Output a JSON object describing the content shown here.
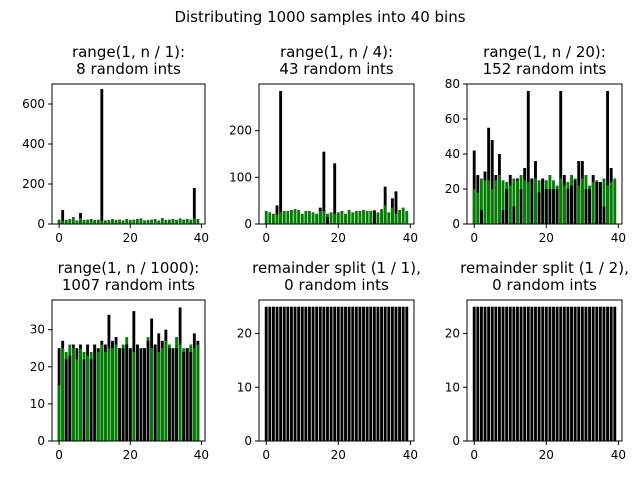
{
  "figure": {
    "suptitle": "Distributing 1000 samples into 40 bins"
  },
  "colors": {
    "green": "#008000",
    "black": "#000000"
  },
  "chart_data": [
    {
      "type": "bar",
      "title_line1": "range(1, n / 1):",
      "title_line2": "8 random ints",
      "xlim": [
        -2,
        41
      ],
      "ylim": [
        0,
        700
      ],
      "xticks": [
        0,
        20,
        40
      ],
      "yticks": [
        0,
        200,
        400,
        600
      ],
      "green": [
        22,
        15,
        20,
        25,
        35,
        18,
        30,
        20,
        22,
        25,
        20,
        22,
        15,
        18,
        20,
        25,
        20,
        22,
        18,
        25,
        20,
        22,
        25,
        28,
        18,
        20,
        22,
        25,
        18,
        30,
        20,
        22,
        25,
        20,
        28,
        22,
        25,
        22,
        28,
        25
      ],
      "black": [
        0,
        70,
        0,
        0,
        0,
        0,
        55,
        0,
        0,
        0,
        0,
        0,
        675,
        0,
        0,
        0,
        0,
        0,
        0,
        0,
        0,
        0,
        0,
        0,
        0,
        0,
        0,
        0,
        0,
        0,
        0,
        0,
        0,
        0,
        0,
        0,
        0,
        0,
        180,
        0
      ]
    },
    {
      "type": "bar",
      "title_line1": "range(1, n / 4):",
      "title_line2": "43 random ints",
      "xlim": [
        -2,
        41
      ],
      "ylim": [
        0,
        300
      ],
      "xticks": [
        0,
        20,
        40
      ],
      "yticks": [
        0,
        100,
        200
      ],
      "green": [
        28,
        25,
        22,
        20,
        25,
        28,
        28,
        30,
        32,
        30,
        22,
        28,
        28,
        25,
        22,
        28,
        28,
        22,
        25,
        22,
        25,
        28,
        22,
        30,
        25,
        28,
        28,
        30,
        28,
        28,
        30,
        25,
        32,
        40,
        25,
        35,
        22,
        30,
        35,
        28
      ],
      "black": [
        0,
        0,
        0,
        40,
        285,
        0,
        0,
        0,
        0,
        0,
        0,
        0,
        0,
        0,
        0,
        35,
        155,
        15,
        0,
        130,
        0,
        0,
        0,
        0,
        0,
        0,
        0,
        0,
        0,
        0,
        28,
        0,
        0,
        80,
        0,
        55,
        70,
        0,
        0,
        0
      ]
    },
    {
      "type": "bar",
      "title_line1": "range(1, n / 20):",
      "title_line2": "152 random ints",
      "xlim": [
        -2,
        41
      ],
      "ylim": [
        0,
        80
      ],
      "xticks": [
        0,
        20,
        40
      ],
      "yticks": [
        0,
        20,
        40,
        60,
        80
      ],
      "green": [
        20,
        18,
        26,
        25,
        25,
        20,
        25,
        28,
        25,
        24,
        22,
        26,
        25,
        28,
        25,
        24,
        26,
        26,
        25,
        26,
        25,
        28,
        25,
        22,
        26,
        22,
        24,
        28,
        26,
        22,
        26,
        28,
        22,
        24,
        25,
        24,
        26,
        22,
        24,
        26
      ],
      "black": [
        42,
        28,
        8,
        30,
        55,
        48,
        28,
        40,
        8,
        20,
        28,
        10,
        26,
        20,
        32,
        76,
        26,
        36,
        18,
        26,
        20,
        20,
        20,
        20,
        76,
        28,
        20,
        22,
        25,
        36,
        36,
        20,
        20,
        28,
        24,
        24,
        10,
        76,
        32,
        0
      ]
    },
    {
      "type": "bar",
      "title_line1": "range(1, n / 1000):",
      "title_line2": "1007 random ints",
      "xlim": [
        -2,
        41
      ],
      "ylim": [
        0,
        38
      ],
      "xticks": [
        0,
        20,
        40
      ],
      "yticks": [
        0,
        10,
        20,
        30
      ],
      "green": [
        15,
        25,
        24,
        26,
        25,
        22,
        25,
        24,
        23,
        24,
        26,
        24,
        26,
        24,
        25,
        25,
        26,
        25,
        26,
        28,
        25,
        24,
        26,
        25,
        25,
        28,
        25,
        26,
        24,
        25,
        27,
        26,
        25,
        28,
        26,
        25,
        25,
        26,
        25,
        26
      ],
      "black": [
        25,
        27,
        22,
        23,
        26,
        25,
        26,
        22,
        26,
        22,
        26,
        25,
        27,
        26,
        34,
        27,
        28,
        25,
        25,
        26,
        25,
        35,
        26,
        25,
        25,
        27,
        33,
        26,
        29,
        27,
        30,
        25,
        25,
        25,
        36,
        24,
        25,
        24,
        29,
        27
      ]
    },
    {
      "type": "bar",
      "title_line1": "remainder split (1 / 1),",
      "title_line2": "0 random ints",
      "xlim": [
        -2,
        41
      ],
      "ylim": [
        0,
        26.25
      ],
      "xticks": [
        0,
        20,
        40
      ],
      "yticks": [
        0,
        10,
        20
      ],
      "green": [],
      "black": [
        25,
        25,
        25,
        25,
        25,
        25,
        25,
        25,
        25,
        25,
        25,
        25,
        25,
        25,
        25,
        25,
        25,
        25,
        25,
        25,
        25,
        25,
        25,
        25,
        25,
        25,
        25,
        25,
        25,
        25,
        25,
        25,
        25,
        25,
        25,
        25,
        25,
        25,
        25,
        25
      ]
    },
    {
      "type": "bar",
      "title_line1": "remainder split (1 / 2),",
      "title_line2": "0 random ints",
      "xlim": [
        -2,
        41
      ],
      "ylim": [
        0,
        26.25
      ],
      "xticks": [
        0,
        20,
        40
      ],
      "yticks": [
        0,
        10,
        20
      ],
      "green": [],
      "black": [
        25,
        25,
        25,
        25,
        25,
        25,
        25,
        25,
        25,
        25,
        25,
        25,
        25,
        25,
        25,
        25,
        25,
        25,
        25,
        25,
        25,
        25,
        25,
        25,
        25,
        25,
        25,
        25,
        25,
        25,
        25,
        25,
        25,
        25,
        25,
        25,
        25,
        25,
        25,
        25
      ]
    }
  ]
}
